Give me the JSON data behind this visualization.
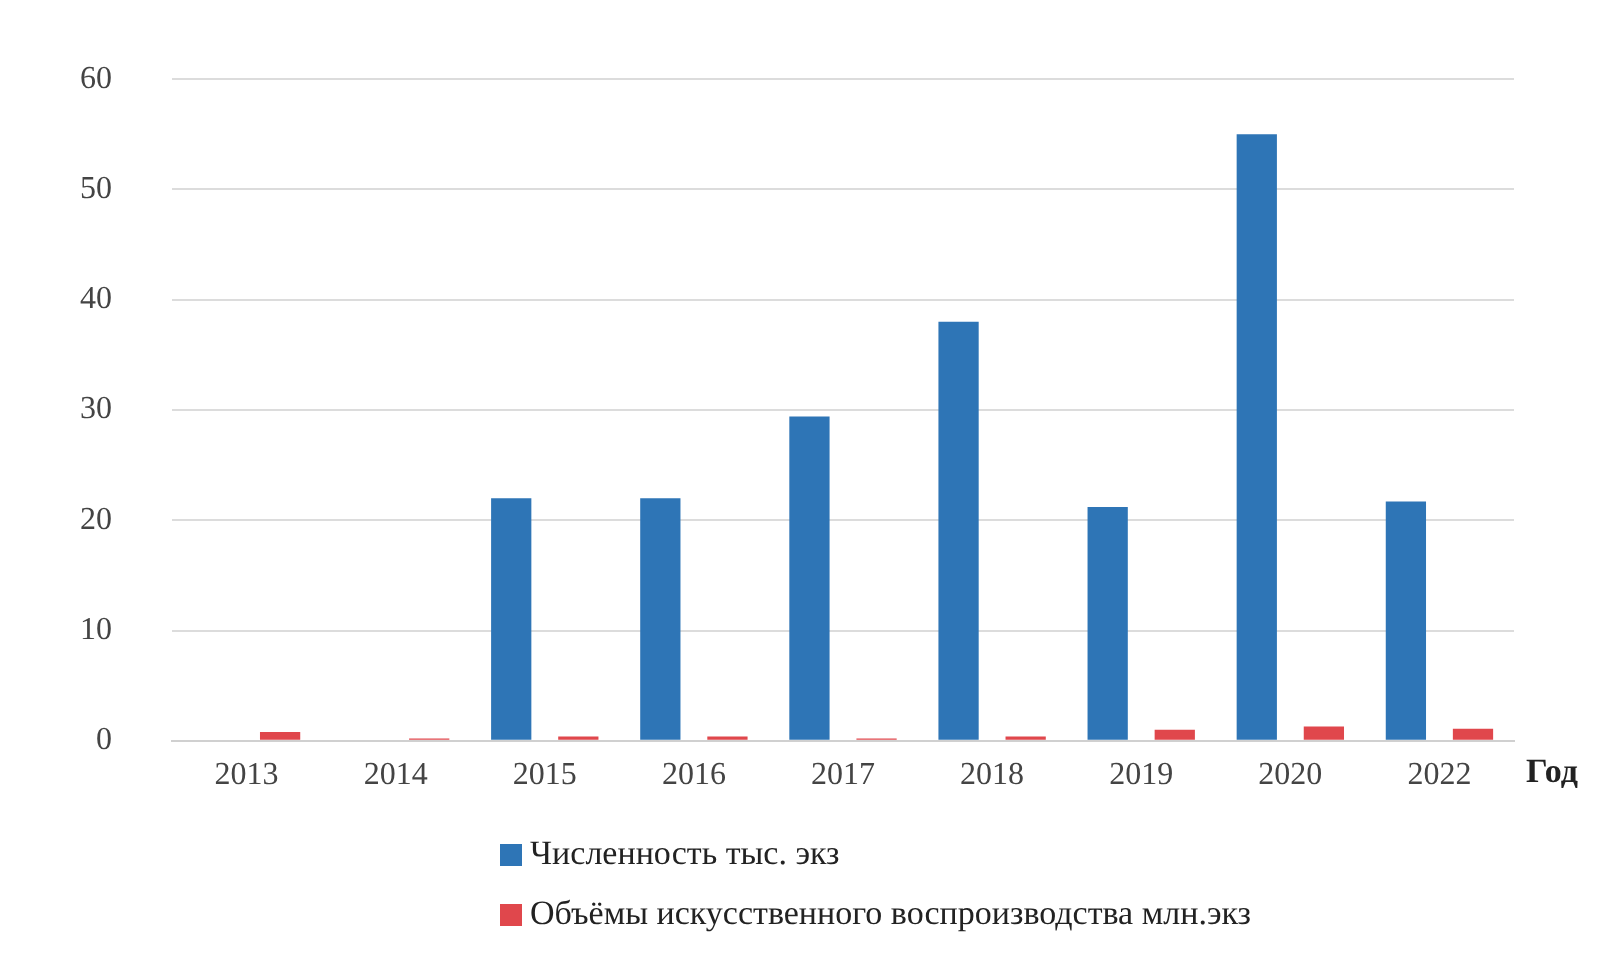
{
  "chart_data": {
    "type": "bar",
    "xlabel": "Год",
    "categories": [
      "2013",
      "2014",
      "2015",
      "2016",
      "2017",
      "2018",
      "2019",
      "2020",
      "2022"
    ],
    "series": [
      {
        "name": "Численность тыс. экз",
        "color": "#2e75b6",
        "values": [
          null,
          null,
          22,
          22,
          29.4,
          38,
          21.2,
          55,
          21.7
        ]
      },
      {
        "name": "Объёмы искусственного воспроизводства млн.экз",
        "color": "#e0474c",
        "values": [
          0.8,
          0.2,
          0.4,
          0.4,
          0.2,
          0.4,
          1,
          1.3,
          1.1
        ]
      }
    ],
    "ylim": [
      0,
      60
    ],
    "yticks": [
      0,
      10,
      20,
      30,
      40,
      50,
      60
    ],
    "grid": "y",
    "legend": "bottom"
  }
}
